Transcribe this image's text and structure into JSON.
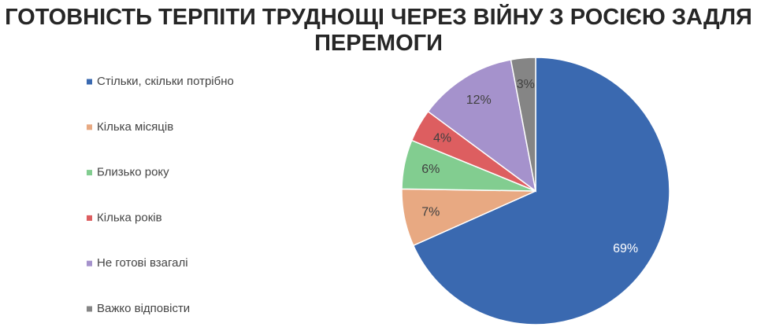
{
  "chart_data": {
    "type": "pie",
    "title": "ГОТОВНІСТЬ ТЕРПІТИ ТРУДНОЩІ ЧЕРЕЗ ВІЙНУ З РОСІЄЮ ЗАДЛЯ ПЕРЕМОГИ",
    "categories": [
      "Стільки, скільки потрібно",
      "Кілька місяців",
      "Близько року",
      "Кілька років",
      "Не готові взагалі",
      "Важко відповісти"
    ],
    "values": [
      69,
      7,
      6,
      4,
      12,
      3
    ],
    "value_labels": [
      "69%",
      "7%",
      "6%",
      "4%",
      "12%",
      "3%"
    ],
    "colors": [
      "#3a69b0",
      "#e8a982",
      "#82cd90",
      "#dd5e60",
      "#a592cc",
      "#858585"
    ],
    "legend": "left"
  }
}
